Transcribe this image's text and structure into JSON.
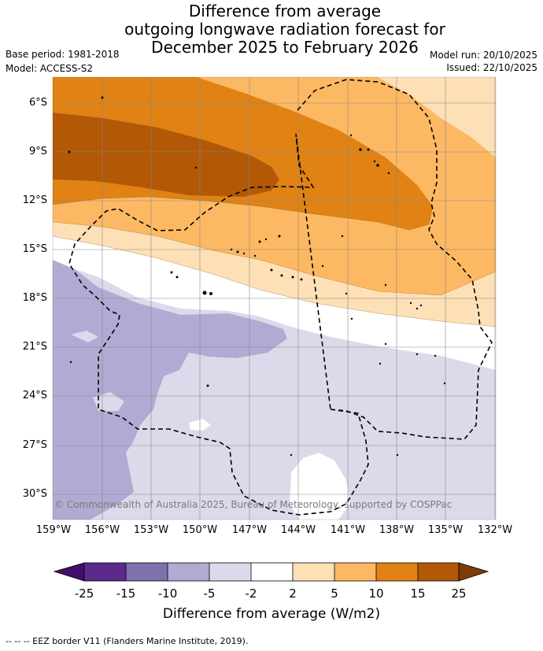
{
  "header": {
    "title_line1": "Difference from average",
    "title_line2": "outgoing longwave radiation forecast for",
    "title_line3": "December 2025 to February 2026",
    "base_period": "Base period: 1981-2018",
    "model": "Model: ACCESS-S2",
    "model_run": "Model run: 20/10/2025",
    "issued": "Issued: 22/10/2025"
  },
  "map": {
    "lat_labels": [
      "6°S",
      "9°S",
      "12°S",
      "15°S",
      "18°S",
      "21°S",
      "24°S",
      "27°S",
      "30°S"
    ],
    "lon_labels": [
      "159°W",
      "156°W",
      "153°W",
      "150°W",
      "147°W",
      "144°W",
      "141°W",
      "138°W",
      "135°W",
      "132°W"
    ],
    "copyright": "© Commonwealth of Australia 2025, Bureau of Meteorology, supported by COSPPac"
  },
  "colorbar": {
    "labels": [
      "-25",
      "-15",
      "-10",
      "-5",
      "-2",
      "2",
      "5",
      "10",
      "15",
      "25"
    ],
    "title": "Difference from average (W/m2)",
    "colors": [
      "#3f0f6b",
      "#5b2a8a",
      "#8070ad",
      "#b1abd3",
      "#dadaeb",
      "#ffffff",
      "#fee0b6",
      "#fdb863",
      "#e08214",
      "#b35806",
      "#7f3b08"
    ]
  },
  "legend": {
    "eez": "--  --  -- EEZ border V11 (Flanders Marine Institute, 2019)."
  }
}
